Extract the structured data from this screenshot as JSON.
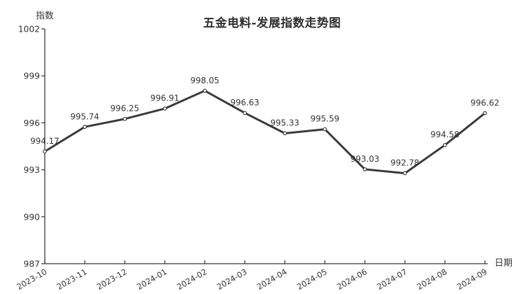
{
  "chart_data": {
    "type": "line",
    "title": "五金电料-发展指数走势图",
    "ylabel": "指数",
    "xlabel": "日期",
    "categories": [
      "2023-10",
      "2023-11",
      "2023-12",
      "2024-01",
      "2024-02",
      "2024-03",
      "2024-04",
      "2024-05",
      "2024-06",
      "2024-07",
      "2024-08",
      "2024-09"
    ],
    "values": [
      994.17,
      995.74,
      996.25,
      996.91,
      998.05,
      996.63,
      995.33,
      995.59,
      993.03,
      992.78,
      994.58,
      996.62
    ],
    "ylim": [
      987,
      1002
    ],
    "yticks": [
      987,
      990,
      993,
      996,
      999,
      1002
    ],
    "grid": false,
    "legend_position": "none",
    "x_label_rotation_deg": -30,
    "colors": {
      "line": "#3a3a3a",
      "marker_fill": "#ffffff",
      "axis": "#333333",
      "text": "#333333",
      "background": "#ffffff"
    }
  }
}
